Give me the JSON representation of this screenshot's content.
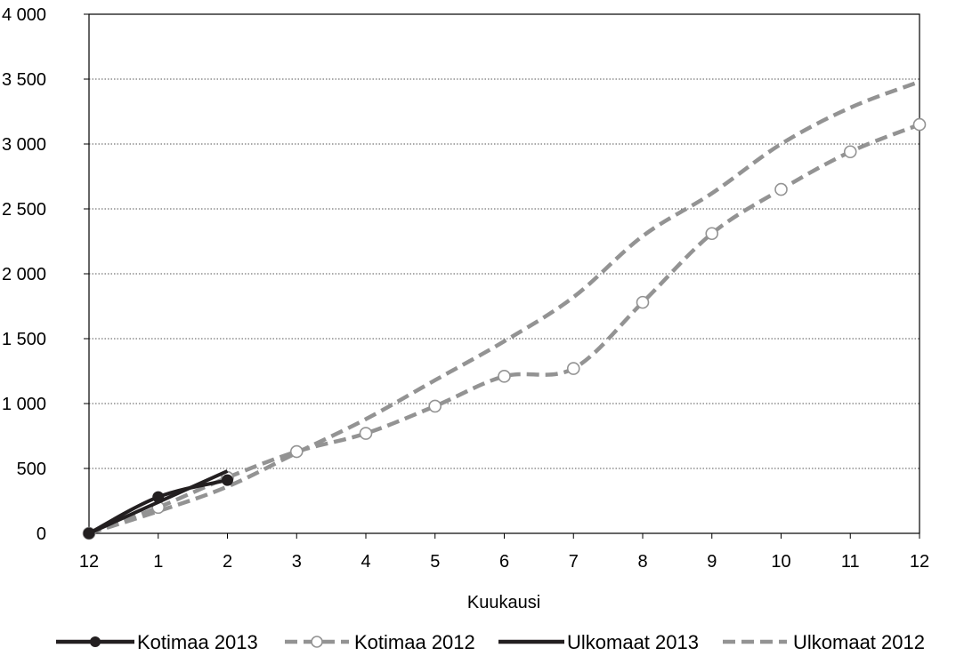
{
  "chart_data": {
    "type": "line",
    "xlabel": "Kuukausi",
    "ylabel": "",
    "title": "",
    "ylim": [
      0,
      4000
    ],
    "grid": true,
    "legend_position": "bottom",
    "x": [
      0,
      1,
      2,
      3,
      4,
      5,
      6,
      7,
      8,
      9,
      10,
      11,
      12
    ],
    "x_tick_labels": [
      "12",
      "1",
      "2",
      "3",
      "4",
      "5",
      "6",
      "7",
      "8",
      "9",
      "10",
      "11",
      "12"
    ],
    "y_tick_labels": [
      "0",
      "500",
      "1 000",
      "1 500",
      "2 000",
      "2 500",
      "3 000",
      "3 500",
      "4 000"
    ],
    "y_ticks": [
      0,
      500,
      1000,
      1500,
      2000,
      2500,
      3000,
      3500,
      4000
    ],
    "series": [
      {
        "name": "Kotimaa 2013",
        "color": "#231f20",
        "style": "solid",
        "marker": "filled-circle",
        "x": [
          0,
          1,
          2
        ],
        "values": [
          0,
          280,
          410
        ]
      },
      {
        "name": "Kotimaa 2012",
        "color": "#939393",
        "style": "dashed",
        "marker": "open-circle",
        "x": [
          0,
          1,
          2,
          3,
          4,
          5,
          6,
          7,
          8,
          9,
          10,
          11,
          12
        ],
        "values": [
          0,
          200,
          430,
          630,
          770,
          980,
          1210,
          1270,
          1780,
          2310,
          2650,
          2940,
          3150
        ]
      },
      {
        "name": "Ulkomaat 2013",
        "color": "#231f20",
        "style": "solid",
        "marker": "none",
        "x": [
          0,
          1,
          2
        ],
        "values": [
          0,
          240,
          480
        ]
      },
      {
        "name": "Ulkomaat 2012",
        "color": "#939393",
        "style": "dashed",
        "marker": "none",
        "x": [
          0,
          1,
          2,
          3,
          4,
          5,
          6,
          7,
          8,
          9,
          10,
          11,
          12
        ],
        "values": [
          0,
          170,
          360,
          620,
          880,
          1180,
          1480,
          1820,
          2290,
          2620,
          3000,
          3280,
          3480
        ]
      }
    ]
  }
}
